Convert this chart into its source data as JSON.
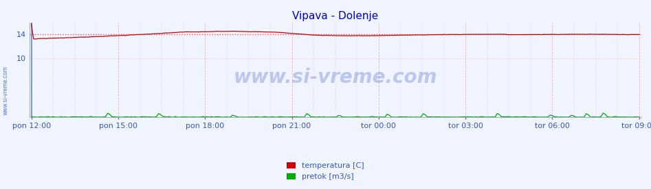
{
  "title": "Vipava - Dolenje",
  "title_color": "#0000cc",
  "background_color": "#f0f4ff",
  "plot_bg_color": "#f0f4ff",
  "yticks": [
    10,
    14
  ],
  "xticklabels": [
    "pon 12:00",
    "pon 15:00",
    "pon 18:00",
    "pon 21:00",
    "tor 00:00",
    "tor 03:00",
    "tor 06:00",
    "tor 09:00"
  ],
  "n_points": 288,
  "temp_color": "#cc0000",
  "flow_color": "#00aa00",
  "hline_color": "#ff4444",
  "hline_style": "dotted",
  "vgrid_color": "#ffaaaa",
  "vgrid_style": "--",
  "hgrid_color": "#ffaaaa",
  "hgrid_style": "dotted",
  "watermark": "www.si-vreme.com",
  "watermark_color": "#3355cc",
  "watermark_alpha": 0.28,
  "sidebar_text": "www.si-vreme.com",
  "sidebar_color": "#3355cc",
  "legend_items": [
    "temperatura [C]",
    "pretok [m3/s]"
  ],
  "legend_colors": [
    "#cc0000",
    "#00aa00"
  ],
  "ymin": 0,
  "ymax": 16,
  "spine_color": "#8888aa",
  "tick_color": "#3355cc",
  "tick_fontsize": 8
}
